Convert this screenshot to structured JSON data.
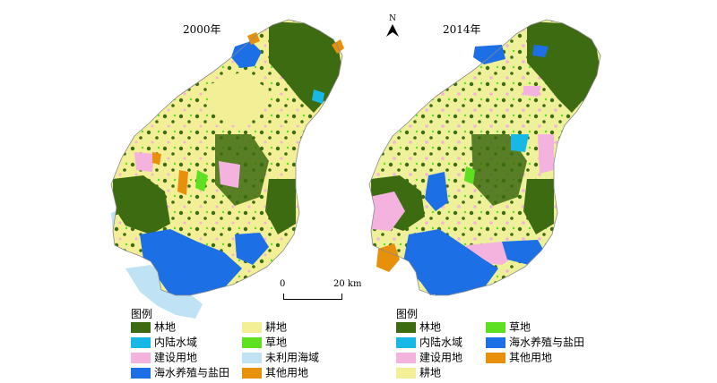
{
  "maps": [
    {
      "title": "2000年"
    },
    {
      "title": "2014年"
    }
  ],
  "north_arrow": {
    "label": "N"
  },
  "scale_bar": {
    "start": "0",
    "end": "20 km"
  },
  "colors": {
    "forest": "#3d6b12",
    "inland_water": "#18b8e6",
    "construction": "#f4b3df",
    "aquaculture_salt": "#1d6fe6",
    "farmland": "#f3ef96",
    "grassland": "#5ce01f",
    "unused_sea": "#bfe3f4",
    "other": "#e8900c"
  },
  "legend_2000": {
    "title": "图例",
    "items": [
      {
        "label": "林地",
        "color": "#3d6b12"
      },
      {
        "label": "内陆水域",
        "color": "#18b8e6"
      },
      {
        "label": "建设用地",
        "color": "#f4b3df"
      },
      {
        "label": "海水养殖与盐田",
        "color": "#1d6fe6"
      },
      {
        "label": "耕地",
        "color": "#f3ef96"
      },
      {
        "label": "草地",
        "color": "#5ce01f"
      },
      {
        "label": "未利用海域",
        "color": "#bfe3f4"
      },
      {
        "label": "其他用地",
        "color": "#e8900c"
      }
    ]
  },
  "legend_2014": {
    "title": "图例",
    "items": [
      {
        "label": "林地",
        "color": "#3d6b12"
      },
      {
        "label": "内陆水域",
        "color": "#18b8e6"
      },
      {
        "label": "建设用地",
        "color": "#f4b3df"
      },
      {
        "label": "耕地",
        "color": "#f3ef96"
      },
      {
        "label": "草地",
        "color": "#5ce01f"
      },
      {
        "label": "海水养殖与盐田",
        "color": "#1d6fe6"
      },
      {
        "label": "其他用地",
        "color": "#e8900c"
      }
    ]
  }
}
